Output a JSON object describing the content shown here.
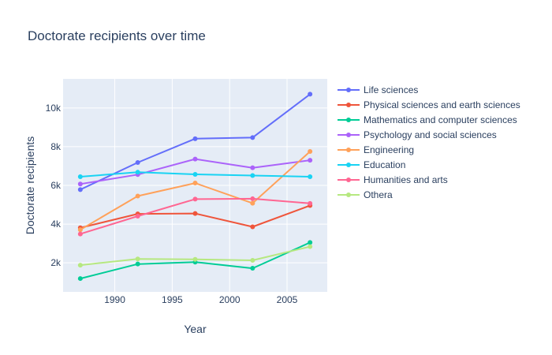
{
  "chart_data": {
    "type": "line",
    "title": "Doctorate recipients over time",
    "xlabel": "Year",
    "ylabel": "Doctorate recipients",
    "xlim": [
      1985.5,
      2008.5
    ],
    "ylim": [
      500,
      11500
    ],
    "x_ticks": [
      1990,
      1995,
      2000,
      2005
    ],
    "x_tick_labels": [
      "1990",
      "1995",
      "2000",
      "2005"
    ],
    "y_ticks": [
      2000,
      4000,
      6000,
      8000,
      10000
    ],
    "y_tick_labels": [
      "2k",
      "4k",
      "6k",
      "8k",
      "10k"
    ],
    "x": [
      1987,
      1992,
      1997,
      2002,
      2007
    ],
    "grid": true,
    "legend_position": "right",
    "series": [
      {
        "name": "Life sciences",
        "color": "#636efa",
        "values": [
          5780,
          7180,
          8410,
          8470,
          10710
        ]
      },
      {
        "name": "Physical sciences and earth sciences",
        "color": "#EF553B",
        "values": [
          3810,
          4530,
          4550,
          3860,
          4960
        ]
      },
      {
        "name": "Mathematics and computer sciences",
        "color": "#00cc96",
        "values": [
          1190,
          1940,
          2040,
          1720,
          3050
        ]
      },
      {
        "name": "Psychology and social sciences",
        "color": "#ab63fa",
        "values": [
          6070,
          6560,
          7360,
          6910,
          7300
        ]
      },
      {
        "name": "Engineering",
        "color": "#FFA15A",
        "values": [
          3710,
          5450,
          6120,
          5080,
          7750
        ]
      },
      {
        "name": "Education",
        "color": "#19d3f3",
        "values": [
          6450,
          6680,
          6570,
          6510,
          6450
        ]
      },
      {
        "name": "Humanities and arts",
        "color": "#FF6692",
        "values": [
          3490,
          4410,
          5290,
          5310,
          5070
        ]
      },
      {
        "name": "Othera",
        "color": "#B6E880",
        "values": [
          1880,
          2200,
          2180,
          2130,
          2840
        ]
      }
    ]
  }
}
